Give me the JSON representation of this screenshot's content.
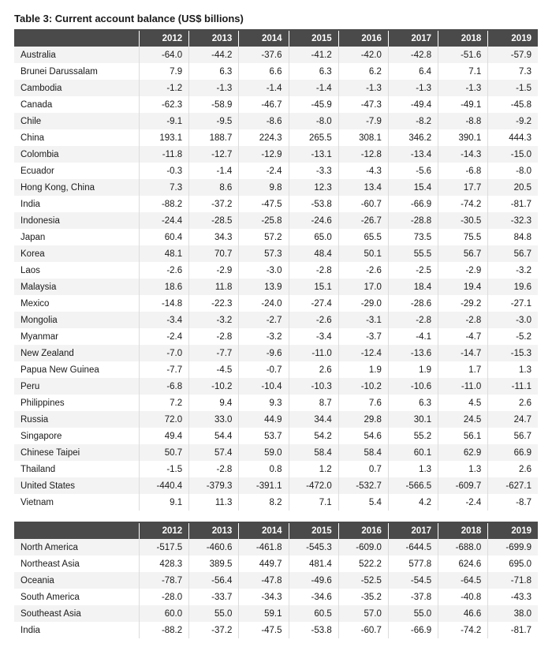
{
  "title": "Table 3: Current account balance (US$ billions)",
  "years": [
    "2012",
    "2013",
    "2014",
    "2015",
    "2016",
    "2017",
    "2018",
    "2019"
  ],
  "colors": {
    "header_bg": "#4a4a4a",
    "header_fg": "#ffffff",
    "row_even_bg": "#f3f3f3",
    "row_odd_bg": "#ffffff",
    "cell_border": "#dcdcdc",
    "text": "#1a1a1a"
  },
  "fonts": {
    "title_size_pt": 10,
    "title_weight": 600,
    "cell_size_pt": 9
  },
  "countries": [
    {
      "name": "Australia",
      "v": [
        "-64.0",
        "-44.2",
        "-37.6",
        "-41.2",
        "-42.0",
        "-42.8",
        "-51.6",
        "-57.9"
      ]
    },
    {
      "name": "Brunei Darussalam",
      "v": [
        "7.9",
        "6.3",
        "6.6",
        "6.3",
        "6.2",
        "6.4",
        "7.1",
        "7.3"
      ]
    },
    {
      "name": "Cambodia",
      "v": [
        "-1.2",
        "-1.3",
        "-1.4",
        "-1.4",
        "-1.3",
        "-1.3",
        "-1.3",
        "-1.5"
      ]
    },
    {
      "name": "Canada",
      "v": [
        "-62.3",
        "-58.9",
        "-46.7",
        "-45.9",
        "-47.3",
        "-49.4",
        "-49.1",
        "-45.8"
      ]
    },
    {
      "name": "Chile",
      "v": [
        "-9.1",
        "-9.5",
        "-8.6",
        "-8.0",
        "-7.9",
        "-8.2",
        "-8.8",
        "-9.2"
      ]
    },
    {
      "name": "China",
      "v": [
        "193.1",
        "188.7",
        "224.3",
        "265.5",
        "308.1",
        "346.2",
        "390.1",
        "444.3"
      ]
    },
    {
      "name": "Colombia",
      "v": [
        "-11.8",
        "-12.7",
        "-12.9",
        "-13.1",
        "-12.8",
        "-13.4",
        "-14.3",
        "-15.0"
      ]
    },
    {
      "name": "Ecuador",
      "v": [
        "-0.3",
        "-1.4",
        "-2.4",
        "-3.3",
        "-4.3",
        "-5.6",
        "-6.8",
        "-8.0"
      ]
    },
    {
      "name": "Hong Kong, China",
      "v": [
        "7.3",
        "8.6",
        "9.8",
        "12.3",
        "13.4",
        "15.4",
        "17.7",
        "20.5"
      ]
    },
    {
      "name": "India",
      "v": [
        "-88.2",
        "-37.2",
        "-47.5",
        "-53.8",
        "-60.7",
        "-66.9",
        "-74.2",
        "-81.7"
      ]
    },
    {
      "name": "Indonesia",
      "v": [
        "-24.4",
        "-28.5",
        "-25.8",
        "-24.6",
        "-26.7",
        "-28.8",
        "-30.5",
        "-32.3"
      ]
    },
    {
      "name": "Japan",
      "v": [
        "60.4",
        "34.3",
        "57.2",
        "65.0",
        "65.5",
        "73.5",
        "75.5",
        "84.8"
      ]
    },
    {
      "name": "Korea",
      "v": [
        "48.1",
        "70.7",
        "57.3",
        "48.4",
        "50.1",
        "55.5",
        "56.7",
        "56.7"
      ]
    },
    {
      "name": "Laos",
      "v": [
        "-2.6",
        "-2.9",
        "-3.0",
        "-2.8",
        "-2.6",
        "-2.5",
        "-2.9",
        "-3.2"
      ]
    },
    {
      "name": "Malaysia",
      "v": [
        "18.6",
        "11.8",
        "13.9",
        "15.1",
        "17.0",
        "18.4",
        "19.4",
        "19.6"
      ]
    },
    {
      "name": "Mexico",
      "v": [
        "-14.8",
        "-22.3",
        "-24.0",
        "-27.4",
        "-29.0",
        "-28.6",
        "-29.2",
        "-27.1"
      ]
    },
    {
      "name": "Mongolia",
      "v": [
        "-3.4",
        "-3.2",
        "-2.7",
        "-2.6",
        "-3.1",
        "-2.8",
        "-2.8",
        "-3.0"
      ]
    },
    {
      "name": "Myanmar",
      "v": [
        "-2.4",
        "-2.8",
        "-3.2",
        "-3.4",
        "-3.7",
        "-4.1",
        "-4.7",
        "-5.2"
      ]
    },
    {
      "name": "New Zealand",
      "v": [
        "-7.0",
        "-7.7",
        "-9.6",
        "-11.0",
        "-12.4",
        "-13.6",
        "-14.7",
        "-15.3"
      ]
    },
    {
      "name": "Papua New Guinea",
      "v": [
        "-7.7",
        "-4.5",
        "-0.7",
        "2.6",
        "1.9",
        "1.9",
        "1.7",
        "1.3"
      ]
    },
    {
      "name": "Peru",
      "v": [
        "-6.8",
        "-10.2",
        "-10.4",
        "-10.3",
        "-10.2",
        "-10.6",
        "-11.0",
        "-11.1"
      ]
    },
    {
      "name": "Philippines",
      "v": [
        "7.2",
        "9.4",
        "9.3",
        "8.7",
        "7.6",
        "6.3",
        "4.5",
        "2.6"
      ]
    },
    {
      "name": "Russia",
      "v": [
        "72.0",
        "33.0",
        "44.9",
        "34.4",
        "29.8",
        "30.1",
        "24.5",
        "24.7"
      ]
    },
    {
      "name": "Singapore",
      "v": [
        "49.4",
        "54.4",
        "53.7",
        "54.2",
        "54.6",
        "55.2",
        "56.1",
        "56.7"
      ]
    },
    {
      "name": "Chinese Taipei",
      "v": [
        "50.7",
        "57.4",
        "59.0",
        "58.4",
        "58.4",
        "60.1",
        "62.9",
        "66.9"
      ]
    },
    {
      "name": "Thailand",
      "v": [
        "-1.5",
        "-2.8",
        "0.8",
        "1.2",
        "0.7",
        "1.3",
        "1.3",
        "2.6"
      ]
    },
    {
      "name": "United States",
      "v": [
        "-440.4",
        "-379.3",
        "-391.1",
        "-472.0",
        "-532.7",
        "-566.5",
        "-609.7",
        "-627.1"
      ]
    },
    {
      "name": "Vietnam",
      "v": [
        "9.1",
        "11.3",
        "8.2",
        "7.1",
        "5.4",
        "4.2",
        "-2.4",
        "-8.7"
      ]
    }
  ],
  "regions": [
    {
      "name": "North America",
      "v": [
        "-517.5",
        "-460.6",
        "-461.8",
        "-545.3",
        "-609.0",
        "-644.5",
        "-688.0",
        "-699.9"
      ]
    },
    {
      "name": "Northeast Asia",
      "v": [
        "428.3",
        "389.5",
        "449.7",
        "481.4",
        "522.2",
        "577.8",
        "624.6",
        "695.0"
      ]
    },
    {
      "name": "Oceania",
      "v": [
        "-78.7",
        "-56.4",
        "-47.8",
        "-49.6",
        "-52.5",
        "-54.5",
        "-64.5",
        "-71.8"
      ]
    },
    {
      "name": "South America",
      "v": [
        "-28.0",
        "-33.7",
        "-34.3",
        "-34.6",
        "-35.2",
        "-37.8",
        "-40.8",
        "-43.3"
      ]
    },
    {
      "name": "Southeast Asia",
      "v": [
        "60.0",
        "55.0",
        "59.1",
        "60.5",
        "57.0",
        "55.0",
        "46.6",
        "38.0"
      ]
    },
    {
      "name": "India",
      "v": [
        "-88.2",
        "-37.2",
        "-47.5",
        "-53.8",
        "-60.7",
        "-66.9",
        "-74.2",
        "-81.7"
      ]
    }
  ]
}
